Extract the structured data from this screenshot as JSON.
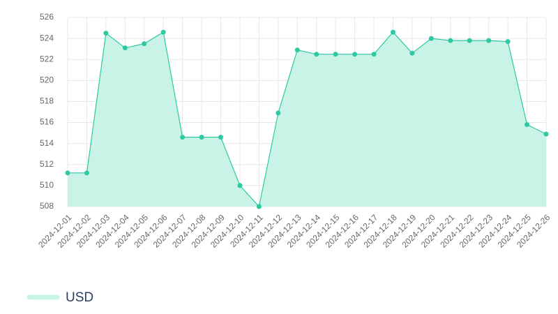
{
  "chart_data": {
    "type": "area",
    "categories": [
      "2024-12-01",
      "2024-12-02",
      "2024-12-03",
      "2024-12-04",
      "2024-12-05",
      "2024-12-06",
      "2024-12-07",
      "2024-12-08",
      "2024-12-09",
      "2024-12-10",
      "2024-12-11",
      "2024-12-12",
      "2024-12-13",
      "2024-12-14",
      "2024-12-15",
      "2024-12-16",
      "2024-12-17",
      "2024-12-18",
      "2024-12-19",
      "2024-12-20",
      "2024-12-21",
      "2024-12-22",
      "2024-12-23",
      "2024-12-24",
      "2024-12-25",
      "2024-12-26"
    ],
    "series": [
      {
        "name": "USD",
        "color": "#2ec9a3",
        "fill": "#c8f3e6",
        "values": [
          511.2,
          511.2,
          524.5,
          523.1,
          523.5,
          524.6,
          514.6,
          514.6,
          514.6,
          510.0,
          508.0,
          516.9,
          522.9,
          522.5,
          522.5,
          522.5,
          522.5,
          524.6,
          522.6,
          524.0,
          523.8,
          523.8,
          523.8,
          523.7,
          515.8,
          514.9
        ]
      }
    ],
    "ylim": [
      508,
      526
    ],
    "yticks": [
      508,
      510,
      512,
      514,
      516,
      518,
      520,
      522,
      524,
      526
    ],
    "grid": true
  }
}
